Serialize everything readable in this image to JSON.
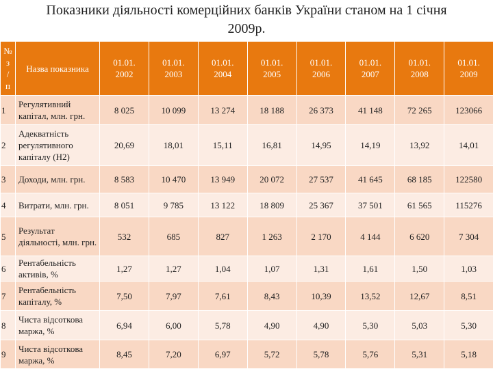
{
  "title": "Показники діяльності комерційних банків України станом на 1 січня 2009р.",
  "table": {
    "header": [
      "№ з / п",
      "Назва показника",
      "01.01. 2002",
      "01.01. 2003",
      "01.01. 2004",
      "01.01. 2005",
      "01.01. 2006",
      "01.01. 2007",
      "01.01. 2008",
      "01.01. 2009"
    ],
    "rows": [
      [
        "1",
        "Регулятивний капітал, млн. грн.",
        "8 025",
        "10 099",
        "13 274",
        "18 188",
        "26 373",
        "41 148",
        "72 265",
        "123066"
      ],
      [
        "2",
        "Адекватність регулятивного капіталу (Н2)",
        "20,69",
        "18,01",
        "15,11",
        "16,81",
        "14,95",
        "14,19",
        "13,92",
        "14,01"
      ],
      [
        "3",
        "Доходи, млн. грн.",
        "8 583",
        "10 470",
        "13 949",
        "20 072",
        "27 537",
        "41 645",
        "68 185",
        "122580"
      ],
      [
        "4",
        "Витрати, млн. грн.",
        "8 051",
        "9 785",
        "13 122",
        "18 809",
        "25 367",
        "37 501",
        "61 565",
        "115276"
      ],
      [
        "5",
        "Результат діяльності, млн. грн.",
        "532",
        "685",
        "827",
        "1 263",
        "2 170",
        "4 144",
        "6 620",
        "7 304"
      ],
      [
        "6",
        "Рентабельність активів, %",
        "1,27",
        "1,27",
        "1,04",
        "1,07",
        "1,31",
        "1,61",
        "1,50",
        "1,03"
      ],
      [
        "7",
        "Рентабельність капіталу, %",
        "7,50",
        "7,97",
        "7,61",
        "8,43",
        "10,39",
        "13,52",
        "12,67",
        "8,51"
      ],
      [
        "8",
        "Чиста відсоткова маржа, %",
        "6,94",
        "6,00",
        "5,78",
        "4,90",
        "4,90",
        "5,30",
        "5,03",
        "5,30"
      ],
      [
        "9",
        "Чиста відсоткова маржа, %",
        "8,45",
        "7,20",
        "6,97",
        "5,72",
        "5,78",
        "5,76",
        "5,31",
        "5,18"
      ]
    ]
  }
}
